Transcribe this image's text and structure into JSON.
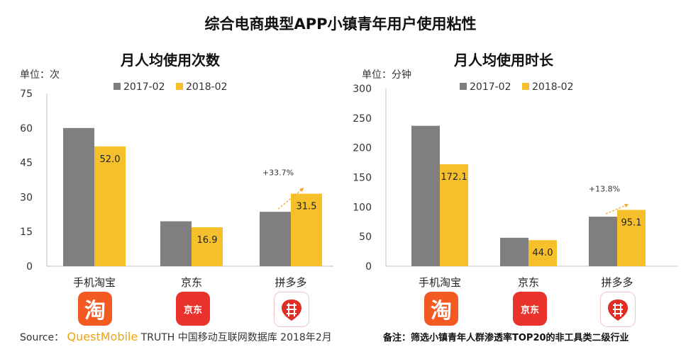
{
  "title": "综合电商典型APP小镇青年用户使用粘性",
  "legend": [
    "2017-02",
    "2018-02"
  ],
  "colors": {
    "s2017": "#7f7f7f",
    "s2018": "#f5c02c",
    "axis": "#bfbfbf",
    "arrow": "#f5a623"
  },
  "footer": {
    "source_prefix": "Source：",
    "source_brand": "QuestMobile",
    "source_rest": "TRUTH 中国移动互联网数据库 2018年2月",
    "note": "备注：筛选小镇青年人群渗透率TOP20的非工具类二级行业"
  },
  "logos": [
    {
      "app": "手机淘宝",
      "icon": "taobao-icon",
      "glyph": "淘"
    },
    {
      "app": "京东",
      "icon": "jd-icon",
      "glyph": "京东"
    },
    {
      "app": "拼多多",
      "icon": "pinduoduo-icon",
      "glyph": "⌗"
    }
  ],
  "chart_data": [
    {
      "type": "bar",
      "title": "月人均使用次数",
      "unit_label": "单位：次",
      "categories": [
        "手机淘宝",
        "京东",
        "拼多多"
      ],
      "series": [
        {
          "name": "2017-02",
          "values": [
            60,
            19.5,
            23.6
          ]
        },
        {
          "name": "2018-02",
          "values": [
            52.0,
            16.9,
            31.5
          ]
        }
      ],
      "data_labels_2018": [
        "52.0",
        "16.9",
        "31.5"
      ],
      "growth_annotation": {
        "category": "拼多多",
        "text": "+33.7%"
      },
      "ylim": [
        0,
        75
      ],
      "yticks": [
        0,
        15,
        30,
        45,
        60,
        75
      ],
      "legend": "top"
    },
    {
      "type": "bar",
      "title": "月人均使用时长",
      "unit_label": "单位：分钟",
      "categories": [
        "手机淘宝",
        "京东",
        "拼多多"
      ],
      "series": [
        {
          "name": "2017-02",
          "values": [
            237,
            48,
            83.6
          ]
        },
        {
          "name": "2018-02",
          "values": [
            172.1,
            44.0,
            95.1
          ]
        }
      ],
      "data_labels_2018": [
        "172.1",
        "44.0",
        "95.1"
      ],
      "growth_annotation": {
        "category": "拼多多",
        "text": "+13.8%"
      },
      "ylim": [
        0,
        300
      ],
      "yticks": [
        0,
        50,
        100,
        150,
        200,
        250,
        300
      ],
      "legend": "top"
    }
  ]
}
